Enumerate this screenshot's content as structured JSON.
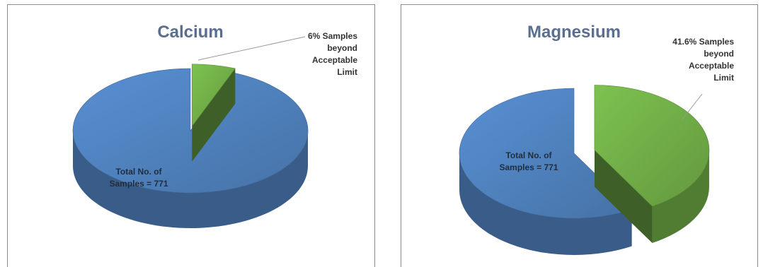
{
  "chart_data": [
    {
      "type": "pie",
      "title": "Calcium",
      "slices": [
        {
          "label": "Total No. of Samples = 771",
          "value": 94,
          "color": "#4f81bd"
        },
        {
          "label": "6% Samples beyond Acceptable Limit",
          "value": 6,
          "color": "#70ad47"
        }
      ],
      "annotations": {
        "total": [
          "Total No. of",
          "Samples = 771"
        ],
        "beyond": [
          "6% Samples",
          "beyond",
          "Acceptable",
          "Limit"
        ]
      },
      "style": "3d-exploded"
    },
    {
      "type": "pie",
      "title": "Magnesium",
      "slices": [
        {
          "label": "Total No. of Samples = 771",
          "value": 58.4,
          "color": "#4f81bd"
        },
        {
          "label": "41.6% Samples beyond Acceptable Limit",
          "value": 41.6,
          "color": "#70ad47"
        }
      ],
      "annotations": {
        "total": [
          "Total No. of",
          "Samples = 771"
        ],
        "beyond": [
          "41.6% Samples",
          "beyond",
          "Acceptable",
          "Limit"
        ]
      },
      "style": "3d-exploded"
    }
  ]
}
